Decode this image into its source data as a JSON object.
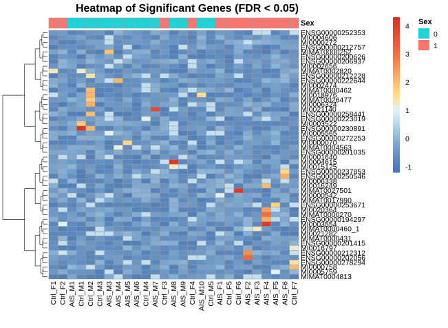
{
  "chart_data": {
    "type": "heatmap",
    "title": "Heatmap of Significant Genes (FDR < 0.05)",
    "columns": [
      "Ctrl_F1",
      "Ctrl_F2",
      "AIS_M1",
      "Ctrl_M1",
      "Ctrl_M2",
      "Ctrl_M3",
      "AIS_M3",
      "AIS_M4",
      "AIS_M5",
      "AIS_M6",
      "Ctrl_M4",
      "AIS_M7",
      "Ctrl_F3",
      "AIS_M8",
      "AIS_M9",
      "Ctrl_F4",
      "AIS_M10",
      "Ctrl_M5",
      "AIS_F1",
      "Ctrl_F5",
      "Ctrl_F6",
      "AIS_F2",
      "AIS_F3",
      "AIS_F4",
      "AIS_F5",
      "AIS_F6",
      "Ctrl_F7"
    ],
    "annotation": {
      "name": "Sex",
      "values": [
        1,
        1,
        0,
        0,
        0,
        0,
        0,
        0,
        0,
        0,
        0,
        0,
        1,
        0,
        0,
        1,
        0,
        0,
        1,
        1,
        1,
        1,
        1,
        1,
        1,
        1,
        1
      ],
      "legend_title": "Sex",
      "legend_labels": [
        "0",
        "1"
      ],
      "colors": {
        "0": "#1fd3d6",
        "1": "#f8766d"
      }
    },
    "rows": [
      "ENSG00000252353",
      "MI0004606",
      "MI0000272",
      "ENSG00000212757",
      "MIMAT0000252",
      "ENSG00000200626",
      "ENSG00000206937",
      "MI0002656",
      "MIMAT0002820",
      "ENSG00000212228",
      "ENSG00000222644",
      "MI0002474",
      "MIMAT0000462",
      "MI0018976",
      "MIMAT0026477",
      "MI0006324",
      "MI0021140",
      "ENSG00000258441",
      "ENSG00000223019",
      "MI0003522",
      "ENSG00000230891",
      "MI0005565",
      "ENSG00000272253",
      "MI0000070",
      "MIMAT0004563",
      "ENSG00000201035",
      "MI0001640",
      "MI0004615",
      "MI0015125",
      "ENSG00000237853",
      "ENSG00000250546",
      "MI0006338",
      "MI0016249",
      "MIMAT0027501",
      "MI0000542",
      "MIMAT0017990",
      "ENSG00000253671",
      "MI0020364",
      "MIMAT0000270",
      "ENSG00000194297",
      "MI0003554",
      "MIMAT0000460_1",
      "MI0021282",
      "MIMAT0000431",
      "ENSG00000201415",
      "MI0016797",
      "ENSG00000212312",
      "ENSG00000202056",
      "ENSG00000278294",
      "MI0000758",
      "MI0005759",
      "MIMAT0004813"
    ],
    "row_labels_shown": [
      "ENSG00000252353",
      "MI0004606",
      "MI0000272",
      "ENSG00000212757",
      "MIMAT0000252",
      "ENSG00000200626",
      "ENSG00000206937",
      "MI0002656",
      "MIMAT0002820",
      "ENSG00000212228",
      "ENSG00000222644",
      "MI0002474",
      "MIMAT0000462",
      "MI0018976",
      "MIMAT0026477",
      "MI0006324",
      "MI0021140",
      "ENSG00000258441",
      "ENSG00000223019",
      "MI0003522",
      "ENSG00000230891",
      "MI0005565",
      "ENSG00000272253",
      "MI0000070",
      "MIMAT0004563",
      "ENSG00000201035",
      "MI0001640",
      "MI0004615",
      "MI0015125",
      "ENSG00000237853",
      "ENSG00000250546",
      "MI0006338",
      "MI0016249",
      "MIMAT0027501",
      "MI0000542",
      "MIMAT0017990",
      "ENSG00000253671",
      "MI0020364",
      "MIMAT0000270",
      "ENSG00000194297",
      "MI0003554",
      "MIMAT0000460_1",
      "MI0021282",
      "MIMAT0000431",
      "ENSG00000201415",
      "MI0016797",
      "ENSG00000212312",
      "ENSG00000202056",
      "ENSG00000278294",
      "MI0000758",
      "MI0005759",
      "MIMAT0004813"
    ],
    "scale": {
      "min": -1.2,
      "max": 4.3,
      "ticks": [
        4,
        3,
        2,
        1,
        0,
        -1
      ]
    },
    "highlights": [
      {
        "row": 4,
        "col": 6,
        "value": 1.9
      },
      {
        "row": 8,
        "col": 0,
        "value": 1.3
      },
      {
        "row": 8,
        "col": 3,
        "value": 1.2
      },
      {
        "row": 9,
        "col": 4,
        "value": 1.4
      },
      {
        "row": 10,
        "col": 7,
        "value": 2.1
      },
      {
        "row": 12,
        "col": 4,
        "value": 2.0
      },
      {
        "row": 13,
        "col": 4,
        "value": 2.1
      },
      {
        "row": 13,
        "col": 16,
        "value": 1.5
      },
      {
        "row": 14,
        "col": 4,
        "value": 1.8
      },
      {
        "row": 15,
        "col": 4,
        "value": 2.2
      },
      {
        "row": 16,
        "col": 11,
        "value": 3.8
      },
      {
        "row": 17,
        "col": 4,
        "value": 2.0
      },
      {
        "row": 18,
        "col": 10,
        "value": 1.1
      },
      {
        "row": 19,
        "col": 3,
        "value": 1.8
      },
      {
        "row": 20,
        "col": 3,
        "value": 4.2
      },
      {
        "row": 20,
        "col": 4,
        "value": 2.1
      },
      {
        "row": 21,
        "col": 6,
        "value": 1.0
      },
      {
        "row": 23,
        "col": 8,
        "value": 1.6
      },
      {
        "row": 24,
        "col": 7,
        "value": 1.1
      },
      {
        "row": 27,
        "col": 13,
        "value": 4.1
      },
      {
        "row": 28,
        "col": 13,
        "value": 1.3
      },
      {
        "row": 29,
        "col": 25,
        "value": 1.6
      },
      {
        "row": 30,
        "col": 25,
        "value": 2.2
      },
      {
        "row": 32,
        "col": 23,
        "value": 2.0
      },
      {
        "row": 33,
        "col": 20,
        "value": 4.1
      },
      {
        "row": 34,
        "col": 18,
        "value": 1.0
      },
      {
        "row": 36,
        "col": 24,
        "value": 1.7
      },
      {
        "row": 37,
        "col": 23,
        "value": 2.4
      },
      {
        "row": 38,
        "col": 23,
        "value": 3.0
      },
      {
        "row": 39,
        "col": 23,
        "value": 2.2
      },
      {
        "row": 40,
        "col": 23,
        "value": 4.1
      },
      {
        "row": 40,
        "col": 1,
        "value": 1.0
      },
      {
        "row": 41,
        "col": 22,
        "value": 1.3
      },
      {
        "row": 45,
        "col": 26,
        "value": 1.2
      },
      {
        "row": 46,
        "col": 21,
        "value": 2.6
      },
      {
        "row": 47,
        "col": 21,
        "value": 3.2
      },
      {
        "row": 48,
        "col": 26,
        "value": 1.4
      },
      {
        "row": 49,
        "col": 26,
        "value": 2.0
      },
      {
        "row": 50,
        "col": 24,
        "value": 1.0
      }
    ]
  }
}
